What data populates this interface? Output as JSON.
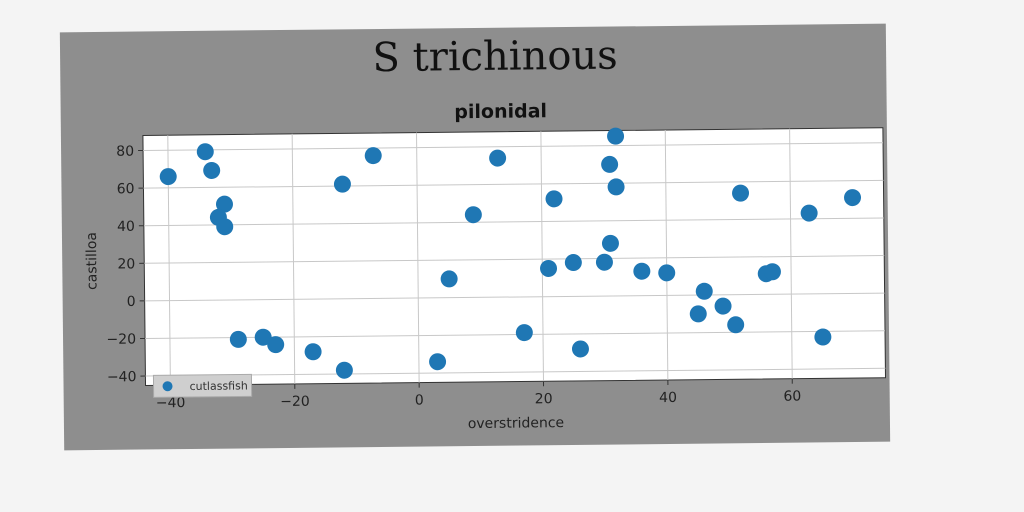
{
  "chart_data": {
    "type": "scatter",
    "suptitle": "S trichinous",
    "title": "pilonidal",
    "xlabel": "overstridence",
    "ylabel": "castilloa",
    "xlim": [
      -44,
      75
    ],
    "ylim": [
      -45,
      88
    ],
    "xticks": [
      -40,
      -20,
      0,
      20,
      40,
      60
    ],
    "yticks": [
      -40,
      -20,
      0,
      20,
      40,
      60,
      80
    ],
    "grid": true,
    "legend_position": "lower-left",
    "series": [
      {
        "name": "cutlassfish",
        "color": "#1f77b4",
        "points": [
          {
            "x": -40,
            "y": 66
          },
          {
            "x": -34,
            "y": 79
          },
          {
            "x": -33,
            "y": 69
          },
          {
            "x": -31,
            "y": 51
          },
          {
            "x": -32,
            "y": 44
          },
          {
            "x": -31,
            "y": 39
          },
          {
            "x": -29,
            "y": -21
          },
          {
            "x": -25,
            "y": -20
          },
          {
            "x": -23,
            "y": -24
          },
          {
            "x": -17,
            "y": -28
          },
          {
            "x": -12,
            "y": 61
          },
          {
            "x": -12,
            "y": -38
          },
          {
            "x": -7,
            "y": 76
          },
          {
            "x": 3,
            "y": -34
          },
          {
            "x": 5,
            "y": 10
          },
          {
            "x": 9,
            "y": 44
          },
          {
            "x": 13,
            "y": 74
          },
          {
            "x": 17,
            "y": -19
          },
          {
            "x": 21,
            "y": 15
          },
          {
            "x": 22,
            "y": 52
          },
          {
            "x": 25,
            "y": 18
          },
          {
            "x": 26,
            "y": -28
          },
          {
            "x": 30,
            "y": 18
          },
          {
            "x": 31,
            "y": 70
          },
          {
            "x": 31,
            "y": 28
          },
          {
            "x": 32,
            "y": 85
          },
          {
            "x": 32,
            "y": 58
          },
          {
            "x": 36,
            "y": 13
          },
          {
            "x": 40,
            "y": 12
          },
          {
            "x": 45,
            "y": -10
          },
          {
            "x": 46,
            "y": 2
          },
          {
            "x": 49,
            "y": -6
          },
          {
            "x": 51,
            "y": -16
          },
          {
            "x": 52,
            "y": 54
          },
          {
            "x": 56,
            "y": 11
          },
          {
            "x": 57,
            "y": 12
          },
          {
            "x": 63,
            "y": 43
          },
          {
            "x": 65,
            "y": -23
          },
          {
            "x": 70,
            "y": 51
          }
        ]
      }
    ]
  }
}
